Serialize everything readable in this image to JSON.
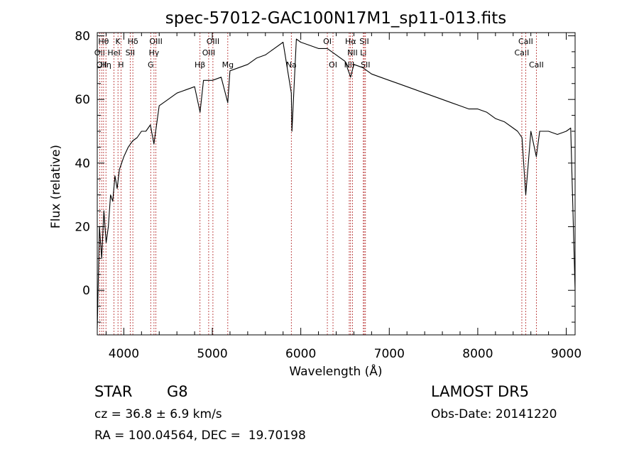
{
  "chart_data": {
    "type": "line",
    "title": "spec-57012-GAC100N17M1_sp11-013.fits",
    "xlabel": "Wavelength (Å)",
    "ylabel": "Flux (relative)",
    "xlim": [
      3700,
      9100
    ],
    "ylim": [
      -14,
      81
    ],
    "x_ticks": [
      4000,
      5000,
      6000,
      7000,
      8000,
      9000
    ],
    "y_ticks": [
      0,
      20,
      40,
      60,
      80
    ],
    "grid": false,
    "series": [
      {
        "x": [
          3700,
          3725,
          3750,
          3775,
          3800,
          3825,
          3850,
          3875,
          3900,
          3925,
          3950,
          3975,
          4000,
          4050,
          4100,
          4150,
          4200,
          4250,
          4300,
          4340,
          4400,
          4500,
          4600,
          4700,
          4800,
          4862,
          4900,
          5000,
          5100,
          5175,
          5200,
          5300,
          5400,
          5500,
          5600,
          5700,
          5800,
          5893,
          5900,
          5950,
          6000,
          6100,
          6200,
          6300,
          6400,
          6500,
          6563,
          6600,
          6700,
          6800,
          6900,
          7000,
          7100,
          7200,
          7300,
          7400,
          7500,
          7600,
          7700,
          7800,
          7900,
          8000,
          8100,
          8200,
          8300,
          8400,
          8450,
          8500,
          8542,
          8600,
          8662,
          8700,
          8800,
          8900,
          9000,
          9050,
          9100
        ],
        "y": [
          -12,
          20,
          10,
          25,
          15,
          20,
          30,
          28,
          36,
          32,
          38,
          40,
          42,
          45,
          47,
          48,
          50,
          50,
          52,
          46,
          58,
          60,
          62,
          63,
          64,
          56,
          66,
          66,
          67,
          59,
          69,
          70,
          71,
          73,
          74,
          76,
          78,
          62,
          50,
          79,
          78,
          77,
          76,
          76,
          74,
          72,
          67,
          71,
          70,
          68,
          67,
          66,
          65,
          64,
          63,
          62,
          61,
          60,
          59,
          58,
          57,
          57,
          56,
          54,
          53,
          51,
          50,
          48,
          30,
          50,
          42,
          50,
          50,
          49,
          50,
          51,
          0
        ]
      }
    ],
    "line_markers": [
      {
        "x": 3727,
        "label": "OII",
        "row": 2
      },
      {
        "x": 3750,
        "label": "OII",
        "row": 3
      },
      {
        "x": 3771,
        "label": "Hθ",
        "row": 1
      },
      {
        "x": 3798,
        "label": "Hη",
        "row": 3
      },
      {
        "x": 3889,
        "label": "HeI",
        "row": 2
      },
      {
        "x": 3934,
        "label": "K",
        "row": 1
      },
      {
        "x": 3968,
        "label": "H",
        "row": 3
      },
      {
        "x": 4072,
        "label": "SII",
        "row": 2
      },
      {
        "x": 4102,
        "label": "Hδ",
        "row": 1
      },
      {
        "x": 4304,
        "label": "G",
        "row": 3
      },
      {
        "x": 4341,
        "label": "Hγ",
        "row": 2
      },
      {
        "x": 4363,
        "label": "OIII",
        "row": 1
      },
      {
        "x": 4861,
        "label": "Hβ",
        "row": 3
      },
      {
        "x": 4959,
        "label": "OIII",
        "row": 2
      },
      {
        "x": 5007,
        "label": "OIII",
        "row": 1
      },
      {
        "x": 5175,
        "label": "Mg",
        "row": 3
      },
      {
        "x": 5893,
        "label": "Na",
        "row": 3
      },
      {
        "x": 6300,
        "label": "OI",
        "row": 1
      },
      {
        "x": 6364,
        "label": "OI",
        "row": 3
      },
      {
        "x": 6548,
        "label": "NII",
        "row": 3
      },
      {
        "x": 6563,
        "label": "Hα",
        "row": 1
      },
      {
        "x": 6584,
        "label": "NII",
        "row": 2
      },
      {
        "x": 6707,
        "label": "Li",
        "row": 2
      },
      {
        "x": 6717,
        "label": "SII",
        "row": 1
      },
      {
        "x": 6731,
        "label": "SII",
        "row": 3
      },
      {
        "x": 8498,
        "label": "CaII",
        "row": 2
      },
      {
        "x": 8542,
        "label": "CaII",
        "row": 1
      },
      {
        "x": 8662,
        "label": "CaII",
        "row": 3
      }
    ]
  },
  "info": {
    "class_label": "STAR",
    "subclass_label": "G8",
    "survey_label": "LAMOST DR5",
    "cz_text": "cz = 36.8 ± 6.9 km/s",
    "obs_date_text": "Obs-Date: 20141220",
    "radec_text": "RA = 100.04564, DEC =  19.70198"
  },
  "colors": {
    "spectrum": "#000000",
    "marker_line": "#b22222",
    "axes": "#000000"
  }
}
